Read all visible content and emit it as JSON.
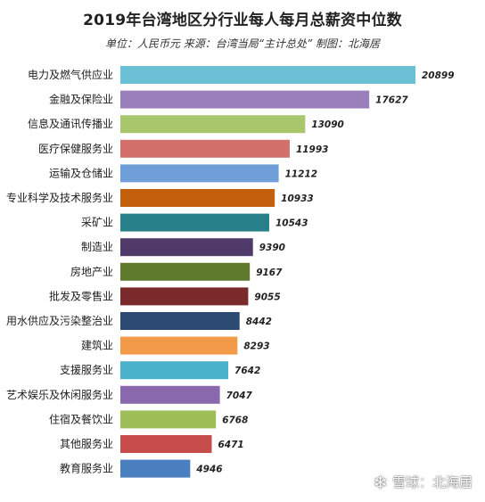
{
  "chart_data": {
    "type": "bar",
    "orientation": "horizontal",
    "title": "2019年台湾地区分行业每人每月总薪资中位数",
    "subtitle": "单位：人民币元 来源：台湾当局“主计总处” 制图：北海居",
    "categories": [
      "电力及燃气供应业",
      "金融及保险业",
      "信息及通讯传播业",
      "医疗保健服务业",
      "运输及仓储业",
      "专业科学及技术服务业",
      "采矿业",
      "制造业",
      "房地产业",
      "批发及零售业",
      "用水供应及污染整治业",
      "建筑业",
      "支援服务业",
      "艺术娱乐及休闲服务业",
      "住宿及餐饮业",
      "其他服务业",
      "教育服务业"
    ],
    "values": [
      20899,
      17627,
      13090,
      11993,
      11212,
      10933,
      10543,
      9390,
      9167,
      9055,
      8442,
      8293,
      7642,
      7047,
      6768,
      6471,
      4946
    ],
    "colors": [
      "#6cc0d6",
      "#9b7fba",
      "#a8c66c",
      "#d4706c",
      "#6f9fd8",
      "#c45f0b",
      "#27808a",
      "#503a6a",
      "#5f7a2c",
      "#7a2a2a",
      "#2c4a72",
      "#f39a48",
      "#4bb2cc",
      "#8a68ad",
      "#9dbd56",
      "#c64d4b",
      "#4a7fc0"
    ],
    "xlim": [
      0,
      21000
    ],
    "grid": false,
    "legend": "none"
  },
  "watermark": {
    "icon": "snowball-icon",
    "text": "雪球：北海居"
  }
}
